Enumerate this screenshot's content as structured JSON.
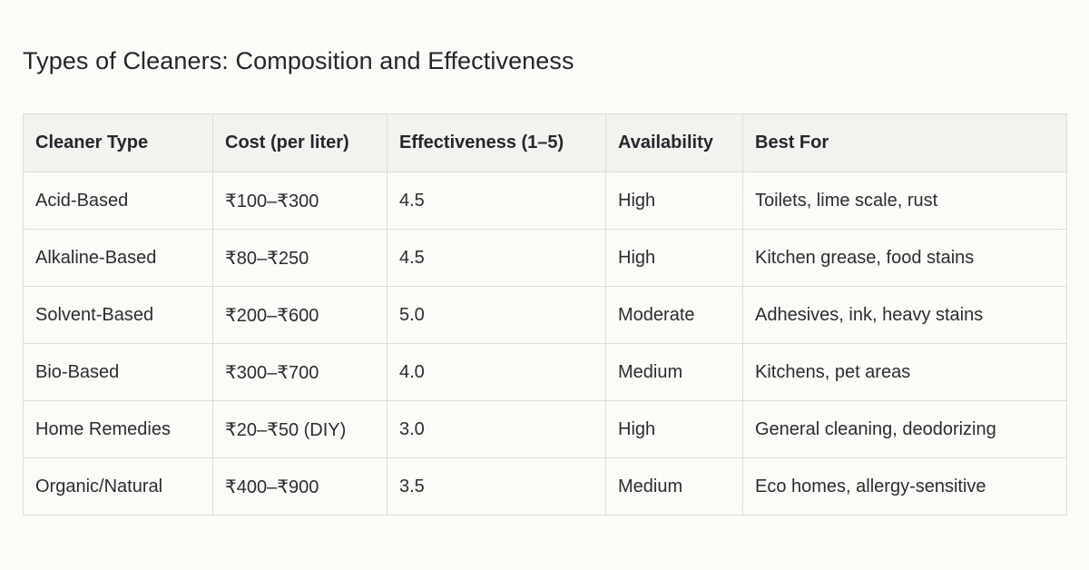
{
  "title": "Types of Cleaners: Composition and Effectiveness",
  "table": {
    "headers": [
      "Cleaner Type",
      "Cost (per liter)",
      "Effectiveness (1–5)",
      "Availability",
      "Best For"
    ],
    "rows": [
      [
        "Acid-Based",
        "₹100–₹300",
        "4.5",
        "High",
        "Toilets, lime scale, rust"
      ],
      [
        "Alkaline-Based",
        "₹80–₹250",
        "4.5",
        "High",
        "Kitchen grease, food stains"
      ],
      [
        "Solvent-Based",
        "₹200–₹600",
        "5.0",
        "Moderate",
        "Adhesives, ink, heavy stains"
      ],
      [
        "Bio-Based",
        "₹300–₹700",
        "4.0",
        "Medium",
        "Kitchens, pet areas"
      ],
      [
        "Home Remedies",
        "₹20–₹50 (DIY)",
        "3.0",
        "High",
        "General cleaning, deodorizing"
      ],
      [
        "Organic/Natural",
        "₹400–₹900",
        "3.5",
        "Medium",
        "Eco homes, allergy-sensitive"
      ]
    ]
  },
  "colors": {
    "background": "#fbfbf8",
    "header_background": "#f2f2ef",
    "border": "#dcdcd8",
    "text": "#1f2327"
  }
}
